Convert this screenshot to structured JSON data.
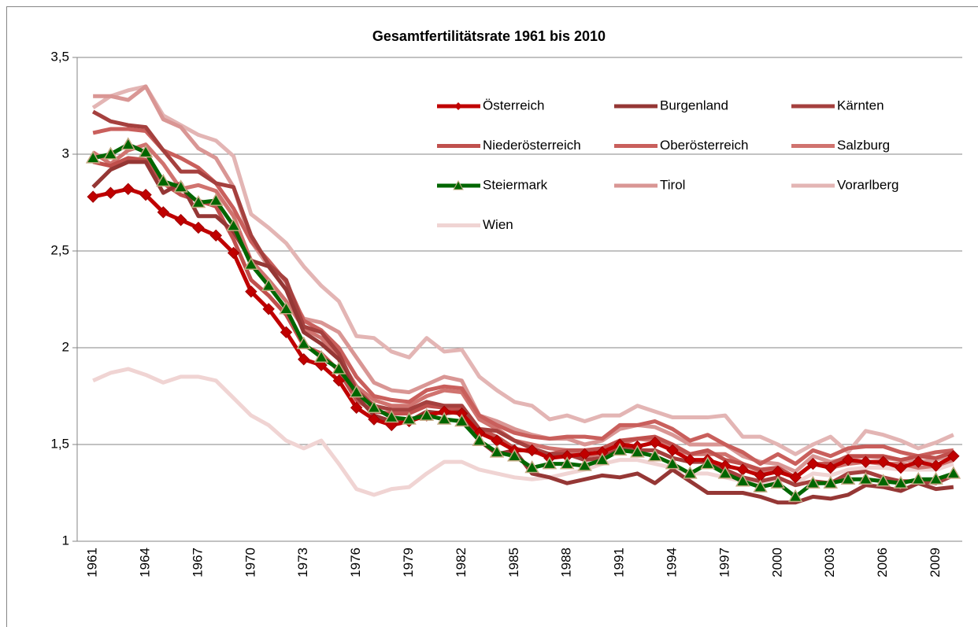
{
  "chart_data": {
    "type": "line",
    "title": "Gesamtfertilitätsrate 1961 bis 2010",
    "categories": [
      "1961",
      null,
      null,
      "1964",
      null,
      null,
      "1967",
      null,
      null,
      "1970",
      null,
      null,
      "1973",
      null,
      null,
      "1976",
      null,
      null,
      "1979",
      null,
      null,
      "1982",
      null,
      null,
      "1985",
      null,
      null,
      "1988",
      null,
      null,
      "1991",
      null,
      null,
      "1994",
      null,
      null,
      "1997",
      null,
      null,
      "2000",
      null,
      null,
      "2003",
      null,
      null,
      "2006",
      null,
      null,
      "2009",
      null
    ],
    "ylim": [
      1,
      3.5
    ],
    "yticks": [
      1,
      {
        "value": 1.5,
        "label": "1,5"
      },
      2,
      {
        "value": 2.5,
        "label": "2,5"
      },
      3,
      {
        "value": 3.5,
        "label": "3,5"
      }
    ],
    "grid": true,
    "legend": "top-right",
    "series": [
      {
        "name": "Österreich",
        "color": "#c00000",
        "marker": "diamond",
        "values": [
          2.78,
          2.8,
          2.82,
          2.79,
          2.7,
          2.66,
          2.62,
          2.58,
          2.49,
          2.29,
          2.2,
          2.08,
          1.94,
          1.91,
          1.83,
          1.69,
          1.63,
          1.6,
          1.62,
          1.65,
          1.67,
          1.66,
          1.56,
          1.52,
          1.47,
          1.47,
          1.43,
          1.44,
          1.45,
          1.46,
          1.5,
          1.49,
          1.51,
          1.47,
          1.42,
          1.42,
          1.39,
          1.37,
          1.34,
          1.36,
          1.33,
          1.4,
          1.38,
          1.42,
          1.41,
          1.41,
          1.38,
          1.41,
          1.39,
          1.44
        ]
      },
      {
        "name": "Burgenland",
        "color": "#953735",
        "values": [
          2.83,
          2.92,
          2.96,
          2.96,
          2.8,
          2.85,
          2.68,
          2.68,
          2.6,
          2.45,
          2.42,
          2.3,
          2.08,
          2.02,
          1.94,
          1.75,
          1.65,
          1.62,
          1.62,
          1.67,
          1.66,
          1.67,
          1.52,
          1.45,
          1.47,
          1.35,
          1.33,
          1.3,
          1.32,
          1.34,
          1.33,
          1.35,
          1.3,
          1.37,
          1.31,
          1.25,
          1.25,
          1.25,
          1.23,
          1.2,
          1.2,
          1.23,
          1.22,
          1.24,
          1.29,
          1.28,
          1.26,
          1.3,
          1.27,
          1.28
        ]
      },
      {
        "name": "Kärnten",
        "color": "#a5403e",
        "values": [
          3.22,
          3.17,
          3.15,
          3.14,
          3.02,
          2.91,
          2.91,
          2.85,
          2.83,
          2.58,
          2.43,
          2.35,
          2.11,
          2.08,
          1.97,
          1.78,
          1.7,
          1.68,
          1.68,
          1.72,
          1.7,
          1.7,
          1.58,
          1.57,
          1.52,
          1.48,
          1.45,
          1.45,
          1.42,
          1.43,
          1.48,
          1.47,
          1.47,
          1.43,
          1.41,
          1.41,
          1.37,
          1.33,
          1.31,
          1.33,
          1.29,
          1.31,
          1.3,
          1.35,
          1.36,
          1.33,
          1.31,
          1.31,
          1.3,
          1.34
        ]
      },
      {
        "name": "Niederösterreich",
        "color": "#c0504d",
        "values": [
          2.96,
          2.94,
          2.98,
          2.97,
          2.85,
          2.79,
          2.76,
          2.73,
          2.56,
          2.35,
          2.27,
          2.17,
          2.01,
          1.97,
          1.88,
          1.73,
          1.67,
          1.66,
          1.66,
          1.7,
          1.69,
          1.68,
          1.58,
          1.54,
          1.48,
          1.46,
          1.45,
          1.47,
          1.47,
          1.48,
          1.52,
          1.53,
          1.54,
          1.5,
          1.45,
          1.47,
          1.42,
          1.4,
          1.37,
          1.38,
          1.33,
          1.4,
          1.4,
          1.44,
          1.44,
          1.44,
          1.42,
          1.44,
          1.43,
          1.46
        ]
      },
      {
        "name": "Oberösterreich",
        "color": "#c95f5c",
        "values": [
          3.11,
          3.13,
          3.13,
          3.12,
          3.02,
          2.98,
          2.93,
          2.85,
          2.72,
          2.55,
          2.45,
          2.34,
          2.14,
          2.09,
          2.0,
          1.85,
          1.75,
          1.73,
          1.72,
          1.78,
          1.8,
          1.79,
          1.65,
          1.6,
          1.56,
          1.54,
          1.53,
          1.54,
          1.54,
          1.53,
          1.6,
          1.6,
          1.62,
          1.58,
          1.52,
          1.55,
          1.5,
          1.46,
          1.4,
          1.45,
          1.4,
          1.47,
          1.44,
          1.48,
          1.49,
          1.49,
          1.46,
          1.44,
          1.46,
          1.47
        ]
      },
      {
        "name": "Salzburg",
        "color": "#d0736f",
        "values": [
          3.01,
          2.95,
          3.02,
          3.05,
          2.95,
          2.82,
          2.84,
          2.81,
          2.68,
          2.45,
          2.35,
          2.24,
          2.1,
          2.05,
          1.95,
          1.8,
          1.73,
          1.7,
          1.7,
          1.75,
          1.78,
          1.77,
          1.63,
          1.58,
          1.52,
          1.5,
          1.48,
          1.47,
          1.44,
          1.45,
          1.5,
          1.53,
          1.52,
          1.48,
          1.45,
          1.45,
          1.45,
          1.4,
          1.36,
          1.38,
          1.33,
          1.4,
          1.38,
          1.4,
          1.41,
          1.4,
          1.4,
          1.38,
          1.39,
          1.42
        ]
      },
      {
        "name": "Steiermark",
        "color": "#006600",
        "marker": "triangle",
        "values": [
          2.98,
          3.0,
          3.05,
          3.01,
          2.86,
          2.83,
          2.75,
          2.76,
          2.63,
          2.43,
          2.32,
          2.2,
          2.02,
          1.95,
          1.89,
          1.77,
          1.69,
          1.64,
          1.63,
          1.65,
          1.63,
          1.62,
          1.52,
          1.46,
          1.44,
          1.38,
          1.4,
          1.4,
          1.39,
          1.42,
          1.47,
          1.46,
          1.44,
          1.4,
          1.35,
          1.4,
          1.35,
          1.31,
          1.28,
          1.3,
          1.23,
          1.3,
          1.3,
          1.32,
          1.32,
          1.31,
          1.3,
          1.32,
          1.32,
          1.35
        ]
      },
      {
        "name": "Tirol",
        "color": "#d99694",
        "values": [
          3.3,
          3.3,
          3.28,
          3.35,
          3.18,
          3.14,
          3.03,
          2.98,
          2.83,
          2.55,
          2.42,
          2.3,
          2.15,
          2.13,
          2.08,
          1.95,
          1.82,
          1.78,
          1.77,
          1.81,
          1.85,
          1.83,
          1.65,
          1.62,
          1.58,
          1.55,
          1.53,
          1.53,
          1.5,
          1.52,
          1.58,
          1.6,
          1.59,
          1.55,
          1.5,
          1.5,
          1.5,
          1.44,
          1.41,
          1.4,
          1.36,
          1.44,
          1.41,
          1.43,
          1.44,
          1.43,
          1.42,
          1.41,
          1.42,
          1.45
        ]
      },
      {
        "name": "Vorarlberg",
        "color": "#e3b5b4",
        "values": [
          3.24,
          3.3,
          3.33,
          3.35,
          3.2,
          3.15,
          3.1,
          3.07,
          2.99,
          2.69,
          2.62,
          2.54,
          2.42,
          2.32,
          2.24,
          2.06,
          2.05,
          1.98,
          1.95,
          2.05,
          1.98,
          1.99,
          1.85,
          1.78,
          1.72,
          1.7,
          1.63,
          1.65,
          1.62,
          1.65,
          1.65,
          1.7,
          1.67,
          1.64,
          1.64,
          1.64,
          1.65,
          1.54,
          1.54,
          1.5,
          1.45,
          1.5,
          1.54,
          1.46,
          1.57,
          1.55,
          1.52,
          1.48,
          1.51,
          1.55
        ]
      },
      {
        "name": "Wien",
        "color": "#f0d4d3",
        "values": [
          1.83,
          1.87,
          1.89,
          1.86,
          1.82,
          1.85,
          1.85,
          1.83,
          1.74,
          1.65,
          1.6,
          1.52,
          1.48,
          1.52,
          1.4,
          1.27,
          1.24,
          1.27,
          1.28,
          1.35,
          1.41,
          1.41,
          1.37,
          1.35,
          1.33,
          1.32,
          1.33,
          1.35,
          1.37,
          1.4,
          1.42,
          1.42,
          1.4,
          1.38,
          1.35,
          1.35,
          1.33,
          1.31,
          1.3,
          1.32,
          1.3,
          1.35,
          1.34,
          1.37,
          1.38,
          1.38,
          1.37,
          1.37,
          1.37,
          1.4
        ]
      }
    ]
  }
}
